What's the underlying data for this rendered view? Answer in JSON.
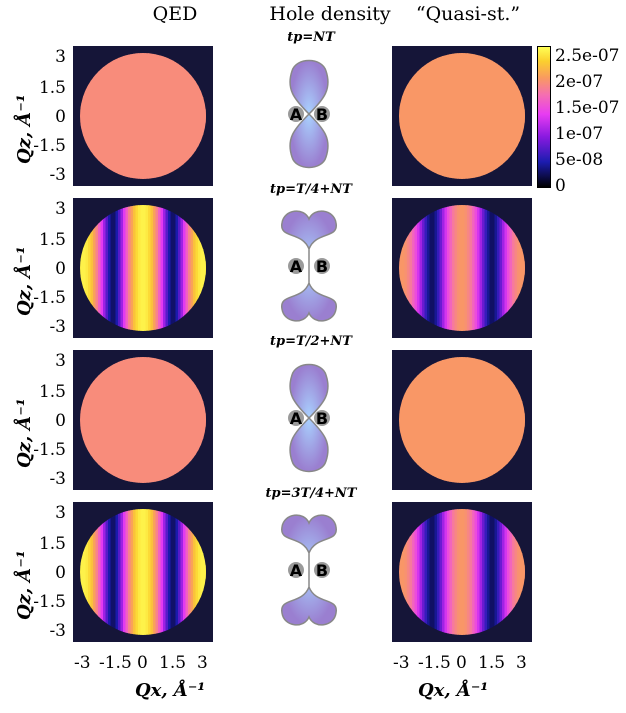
{
  "columns": {
    "left": "QED",
    "middle": "Hole density",
    "right": "“Quasi-st.”"
  },
  "y_axis": {
    "label": "Qz, Å⁻¹",
    "ticks": [
      "3",
      "1.5",
      "0",
      "-1.5",
      "-3"
    ]
  },
  "x_axis": {
    "label": "Qx, Å⁻¹",
    "ticks": [
      "-3",
      "-1.5",
      "0",
      "1.5",
      "3"
    ]
  },
  "atoms": {
    "a": "A",
    "b": "B"
  },
  "rows": [
    {
      "time": "tp=NT"
    },
    {
      "time": "tp=T/4+NT"
    },
    {
      "time": "tp=T/2+NT"
    },
    {
      "time": "tp=3T/4+NT"
    }
  ],
  "colorbar": {
    "ticks": [
      "2.5e-07",
      "2e-07",
      "1.5e-07",
      "1e-07",
      "5e-08",
      "0"
    ],
    "range": [
      0,
      2.7e-07
    ],
    "colors": [
      "#000000",
      "#1c1cb0",
      "#8a1ae0",
      "#e83cf2",
      "#f56fb0",
      "#f99a60",
      "#fbd02e",
      "#ffff55"
    ]
  },
  "chart_data": [
    {
      "type": "heatmap",
      "panel": "QED, tp=NT",
      "pattern": "uniform",
      "value": 1.8e-07,
      "x_range": [
        -3.5,
        3.5
      ],
      "y_range": [
        -3.5,
        3.5
      ]
    },
    {
      "type": "heatmap",
      "panel": "Quasi-st., tp=NT",
      "pattern": "uniform",
      "value": 1.9e-07,
      "x_range": [
        -3.5,
        3.5
      ],
      "y_range": [
        -3.5,
        3.5
      ]
    },
    {
      "type": "heatmap",
      "panel": "QED, tp=T/4+NT",
      "pattern": "fringes",
      "min": 2e-08,
      "max": 2.6e-07,
      "x_range": [
        -3.5,
        3.5
      ],
      "y_range": [
        -3.5,
        3.5
      ]
    },
    {
      "type": "heatmap",
      "panel": "Quasi-st., tp=T/4+NT",
      "pattern": "fringes",
      "min": 2e-08,
      "max": 1.9e-07,
      "x_range": [
        -3.5,
        3.5
      ],
      "y_range": [
        -3.5,
        3.5
      ]
    },
    {
      "type": "heatmap",
      "panel": "QED, tp=T/2+NT",
      "pattern": "uniform",
      "value": 1.8e-07,
      "x_range": [
        -3.5,
        3.5
      ],
      "y_range": [
        -3.5,
        3.5
      ]
    },
    {
      "type": "heatmap",
      "panel": "Quasi-st., tp=T/2+NT",
      "pattern": "uniform",
      "value": 1.9e-07,
      "x_range": [
        -3.5,
        3.5
      ],
      "y_range": [
        -3.5,
        3.5
      ]
    },
    {
      "type": "heatmap",
      "panel": "QED, tp=3T/4+NT",
      "pattern": "fringes",
      "min": 2e-08,
      "max": 2.6e-07,
      "x_range": [
        -3.5,
        3.5
      ],
      "y_range": [
        -3.5,
        3.5
      ]
    },
    {
      "type": "heatmap",
      "panel": "Quasi-st., tp=3T/4+NT",
      "pattern": "fringes",
      "min": 2e-08,
      "max": 1.9e-07,
      "x_range": [
        -3.5,
        3.5
      ],
      "y_range": [
        -3.5,
        3.5
      ]
    }
  ]
}
